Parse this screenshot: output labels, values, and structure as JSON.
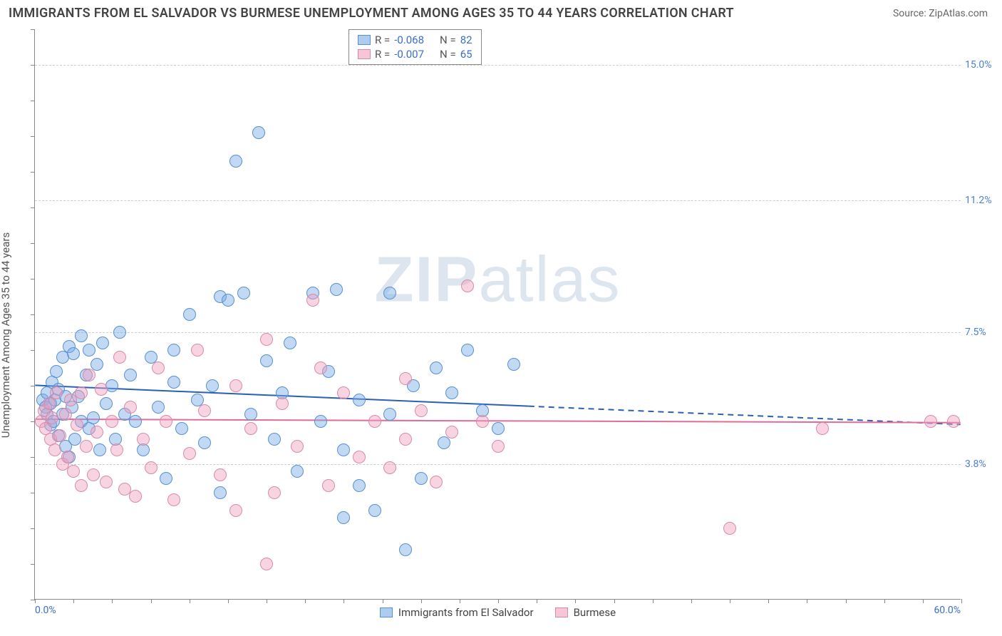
{
  "header": {
    "title": "IMMIGRANTS FROM EL SALVADOR VS BURMESE UNEMPLOYMENT AMONG AGES 35 TO 44 YEARS CORRELATION CHART",
    "source": "Source: ZipAtlas.com"
  },
  "chart": {
    "type": "scatter",
    "ylabel": "Unemployment Among Ages 35 to 44 years",
    "xlim": [
      0,
      60
    ],
    "ylim": [
      0,
      16
    ],
    "x_tick_minor_step": 2.5,
    "y_tick_minor_step": 1,
    "y_grid": [
      {
        "v": 3.8,
        "label": "3.8%"
      },
      {
        "v": 7.5,
        "label": "7.5%"
      },
      {
        "v": 11.2,
        "label": "11.2%"
      },
      {
        "v": 15.0,
        "label": "15.0%"
      }
    ],
    "x_ticks_label": [
      {
        "v": 0,
        "label": "0.0%",
        "align": "left"
      },
      {
        "v": 60,
        "label": "60.0%",
        "align": "right"
      }
    ],
    "watermark": {
      "bold": "ZIP",
      "rest": "atlas"
    },
    "background_color": "#ffffff",
    "grid_color": "#cccccc",
    "series": [
      {
        "name": "Immigrants from El Salvador",
        "color_fill": "rgba(120,170,230,0.45)",
        "color_stroke": "#5a8fd0",
        "legend_r": "-0.068",
        "legend_n": "82",
        "marker_radius": 9,
        "points": [
          [
            0.5,
            5.6
          ],
          [
            0.7,
            5.4
          ],
          [
            0.8,
            5.2
          ],
          [
            0.8,
            5.8
          ],
          [
            1.0,
            4.9
          ],
          [
            1.0,
            5.5
          ],
          [
            1.1,
            6.1
          ],
          [
            1.2,
            5.0
          ],
          [
            1.3,
            5.6
          ],
          [
            1.4,
            6.4
          ],
          [
            1.5,
            4.6
          ],
          [
            1.5,
            5.9
          ],
          [
            1.8,
            5.2
          ],
          [
            1.8,
            6.8
          ],
          [
            2.0,
            4.3
          ],
          [
            2.0,
            5.7
          ],
          [
            2.2,
            4.0
          ],
          [
            2.2,
            7.1
          ],
          [
            2.4,
            5.4
          ],
          [
            2.5,
            6.9
          ],
          [
            2.6,
            4.5
          ],
          [
            2.8,
            5.7
          ],
          [
            3.0,
            5.0
          ],
          [
            3.0,
            7.4
          ],
          [
            3.3,
            6.3
          ],
          [
            3.5,
            4.8
          ],
          [
            3.5,
            7.0
          ],
          [
            3.8,
            5.1
          ],
          [
            4.0,
            6.6
          ],
          [
            4.2,
            4.2
          ],
          [
            4.4,
            7.2
          ],
          [
            4.6,
            5.5
          ],
          [
            5.0,
            6.0
          ],
          [
            5.2,
            4.5
          ],
          [
            5.5,
            7.5
          ],
          [
            5.8,
            5.2
          ],
          [
            6.2,
            6.3
          ],
          [
            6.5,
            5.0
          ],
          [
            7.0,
            4.2
          ],
          [
            7.5,
            6.8
          ],
          [
            8.0,
            5.4
          ],
          [
            8.5,
            3.4
          ],
          [
            9.0,
            6.1
          ],
          [
            9.0,
            7.0
          ],
          [
            9.5,
            4.8
          ],
          [
            10.0,
            8.0
          ],
          [
            10.5,
            5.6
          ],
          [
            11.0,
            4.4
          ],
          [
            11.5,
            6.0
          ],
          [
            12.0,
            8.5
          ],
          [
            12.0,
            3.0
          ],
          [
            12.5,
            8.4
          ],
          [
            13.0,
            12.3
          ],
          [
            13.5,
            8.6
          ],
          [
            14.0,
            5.2
          ],
          [
            14.5,
            13.1
          ],
          [
            15.0,
            6.7
          ],
          [
            15.5,
            4.5
          ],
          [
            16.0,
            5.8
          ],
          [
            16.5,
            7.2
          ],
          [
            17.0,
            3.6
          ],
          [
            18.0,
            8.6
          ],
          [
            18.5,
            5.0
          ],
          [
            19.0,
            6.4
          ],
          [
            19.5,
            8.7
          ],
          [
            20.0,
            4.2
          ],
          [
            20.0,
            2.3
          ],
          [
            21.0,
            5.6
          ],
          [
            21.0,
            3.2
          ],
          [
            22.0,
            2.5
          ],
          [
            23.0,
            8.6
          ],
          [
            23.0,
            5.2
          ],
          [
            24.0,
            1.4
          ],
          [
            24.5,
            6.0
          ],
          [
            25.0,
            3.4
          ],
          [
            26.0,
            6.5
          ],
          [
            26.5,
            4.4
          ],
          [
            27.0,
            5.8
          ],
          [
            28.0,
            7.0
          ],
          [
            29.0,
            5.3
          ],
          [
            30.0,
            4.8
          ],
          [
            31.0,
            6.6
          ]
        ],
        "trend_x_solid": [
          0,
          32
        ],
        "trend_x_dashed": [
          32,
          60
        ],
        "trend_y": [
          6.0,
          4.9
        ],
        "trend_color": "#2a5fb8",
        "trend_width": 2
      },
      {
        "name": "Burmese",
        "color_fill": "rgba(240,160,190,0.45)",
        "color_stroke": "#d88ba8",
        "legend_r": "-0.007",
        "legend_n": "65",
        "marker_radius": 9,
        "points": [
          [
            0.4,
            5.0
          ],
          [
            0.6,
            5.3
          ],
          [
            0.7,
            4.8
          ],
          [
            0.9,
            5.5
          ],
          [
            1.0,
            4.5
          ],
          [
            1.1,
            5.1
          ],
          [
            1.3,
            4.2
          ],
          [
            1.4,
            5.8
          ],
          [
            1.6,
            4.6
          ],
          [
            1.8,
            3.8
          ],
          [
            2.0,
            5.2
          ],
          [
            2.1,
            4.0
          ],
          [
            2.3,
            5.6
          ],
          [
            2.5,
            3.6
          ],
          [
            2.7,
            4.9
          ],
          [
            3.0,
            3.2
          ],
          [
            3.0,
            5.8
          ],
          [
            3.3,
            4.3
          ],
          [
            3.5,
            6.3
          ],
          [
            3.8,
            3.5
          ],
          [
            4.0,
            4.7
          ],
          [
            4.3,
            5.9
          ],
          [
            4.6,
            3.3
          ],
          [
            5.0,
            5.0
          ],
          [
            5.3,
            4.2
          ],
          [
            5.5,
            6.8
          ],
          [
            5.8,
            3.1
          ],
          [
            6.2,
            5.4
          ],
          [
            6.5,
            2.9
          ],
          [
            7.0,
            4.5
          ],
          [
            7.5,
            3.7
          ],
          [
            8.0,
            6.5
          ],
          [
            8.5,
            5.0
          ],
          [
            9.0,
            2.8
          ],
          [
            10.0,
            4.1
          ],
          [
            10.5,
            7.0
          ],
          [
            11.0,
            5.3
          ],
          [
            12.0,
            3.5
          ],
          [
            13.0,
            6.0
          ],
          [
            13.0,
            2.5
          ],
          [
            14.0,
            4.8
          ],
          [
            15.0,
            7.3
          ],
          [
            15.0,
            1.0
          ],
          [
            15.5,
            3.0
          ],
          [
            16.0,
            5.5
          ],
          [
            17.0,
            4.3
          ],
          [
            18.0,
            8.4
          ],
          [
            18.5,
            6.5
          ],
          [
            19.0,
            3.2
          ],
          [
            20.0,
            5.8
          ],
          [
            21.0,
            4.0
          ],
          [
            22.0,
            5.0
          ],
          [
            23.0,
            3.7
          ],
          [
            24.0,
            6.2
          ],
          [
            24.0,
            4.5
          ],
          [
            25.0,
            5.3
          ],
          [
            26.0,
            3.3
          ],
          [
            27.0,
            4.7
          ],
          [
            28.0,
            8.8
          ],
          [
            29.0,
            5.0
          ],
          [
            30.0,
            4.3
          ],
          [
            45.0,
            2.0
          ],
          [
            51.0,
            4.8
          ],
          [
            58.0,
            5.0
          ],
          [
            59.5,
            5.0
          ]
        ],
        "trend_x_solid": [
          0,
          60
        ],
        "trend_x_dashed": null,
        "trend_y": [
          5.05,
          4.95
        ],
        "trend_color": "#e06c9a",
        "trend_width": 2
      }
    ],
    "legend_top_labels": {
      "r": "R =",
      "n": "N ="
    },
    "legend_bottom": [
      {
        "swatch": "b",
        "label": "Immigrants from El Salvador"
      },
      {
        "swatch": "p",
        "label": "Burmese"
      }
    ]
  }
}
